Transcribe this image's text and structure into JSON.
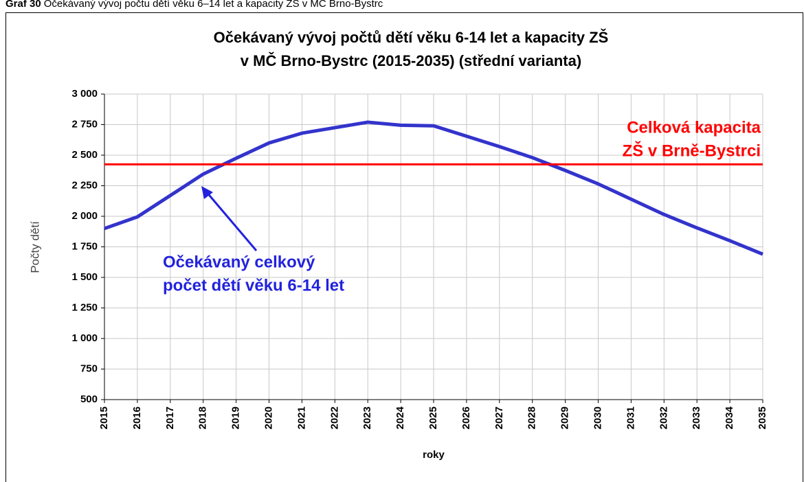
{
  "caption": {
    "label": "Graf 30",
    "text": "Očekávaný vývoj počtu dětí věku 6–14 let a kapacity ZŠ v MČ Brno-Bystrc"
  },
  "chart_data": {
    "type": "line",
    "title": [
      "Očekávaný vývoj počtů dětí věku 6-14 let a kapacity ZŠ",
      "v MČ Brno-Bystrc (2015-2035) (střední varianta)"
    ],
    "x_label": "roky",
    "y_label": "Počty dětí",
    "x": [
      2015,
      2016,
      2017,
      2018,
      2019,
      2020,
      2021,
      2022,
      2023,
      2024,
      2025,
      2026,
      2027,
      2028,
      2029,
      2030,
      2031,
      2032,
      2033,
      2034,
      2035
    ],
    "series": [
      {
        "color": "#3333cc",
        "values": [
          1900,
          1995,
          2170,
          2345,
          2475,
          2600,
          2680,
          2725,
          2770,
          2745,
          2740,
          2655,
          2570,
          2480,
          2375,
          2265,
          2140,
          2015,
          1905,
          1800,
          1690
        ]
      },
      {
        "color": "#ff0000",
        "values": [
          2425,
          2425,
          2425,
          2425,
          2425,
          2425,
          2425,
          2425,
          2425,
          2425,
          2425,
          2425,
          2425,
          2425,
          2425,
          2425,
          2425,
          2425,
          2425,
          2425,
          2425
        ]
      }
    ],
    "annotations": [
      {
        "lines": [
          "Celková kapacita",
          "ZŠ v Brně-Bystrci"
        ],
        "color": "#ff0000"
      },
      {
        "lines": [
          "Očekávaný celkový",
          "počet dětí věku 6-14 let"
        ],
        "color": "#2222dd"
      }
    ],
    "xlim": [
      2015,
      2035
    ],
    "xticks": [
      2015,
      2016,
      2017,
      2018,
      2019,
      2020,
      2021,
      2022,
      2023,
      2024,
      2025,
      2026,
      2027,
      2028,
      2029,
      2030,
      2031,
      2032,
      2033,
      2034,
      2035
    ],
    "ylim": [
      500,
      3000
    ],
    "yticks": [
      500,
      750,
      {
        "value": 1000,
        "label": "1 000"
      },
      {
        "value": 1250,
        "label": "1 250"
      },
      {
        "value": 1500,
        "label": "1 500"
      },
      {
        "value": 1750,
        "label": "1 750"
      },
      {
        "value": 2000,
        "label": "2 000"
      },
      {
        "value": 2250,
        "label": "2 250"
      },
      {
        "value": 2500,
        "label": "2 500"
      },
      {
        "value": 2750,
        "label": "2 750"
      },
      {
        "value": 3000,
        "label": "3 000"
      }
    ],
    "grid": true
  }
}
